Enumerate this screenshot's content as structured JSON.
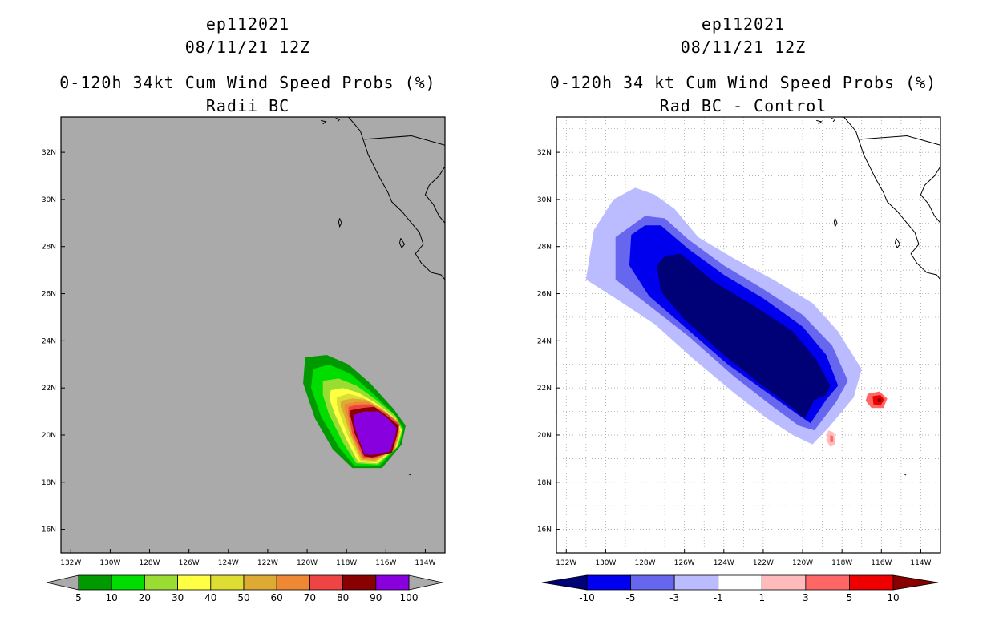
{
  "panels": [
    {
      "id": "left",
      "title_line1": "ep112021",
      "title_line2": "08/11/21 12Z",
      "title_line3": "0-120h 34kt Cum Wind Speed Probs (%)",
      "title_line4": "Radii BC",
      "background_color": "#aaaaaa",
      "colorbar_labels": [
        "5",
        "10",
        "20",
        "30",
        "40",
        "50",
        "60",
        "70",
        "80",
        "90",
        "100"
      ],
      "colorbar_colors": [
        "#aaaaaa",
        "#009900",
        "#00dd00",
        "#99dd33",
        "#ffff44",
        "#dddd33",
        "#ddaa33",
        "#ee8833",
        "#ee4444",
        "#880000",
        "#8800dd",
        "#aaaaaa"
      ]
    },
    {
      "id": "right",
      "title_line1": "ep112021",
      "title_line2": "08/11/21 12Z",
      "title_line3": "0-120h 34 kt Cum Wind Speed Probs (%)",
      "title_line4": "Rad BC - Control",
      "background_color": "#ffffff",
      "colorbar_labels": [
        "-10",
        "-5",
        "-3",
        "-1",
        "1",
        "3",
        "5",
        "10"
      ],
      "colorbar_colors": [
        "#000077",
        "#0000ee",
        "#6666ee",
        "#bbbbff",
        "#ffffff",
        "#ffbbbb",
        "#ff6666",
        "#ee0000",
        "#880000"
      ]
    }
  ],
  "chart_data": [
    {
      "type": "heatmap",
      "title": "0-120h 34kt Cum Wind Speed Probs (%)",
      "subtitle": "Radii BC",
      "xlabel": "",
      "ylabel": "",
      "x_ticks": [
        "132W",
        "130W",
        "128W",
        "126W",
        "124W",
        "122W",
        "120W",
        "118W",
        "116W",
        "114W"
      ],
      "y_ticks": [
        "16N",
        "18N",
        "20N",
        "22N",
        "24N",
        "26N",
        "28N",
        "30N",
        "32N"
      ],
      "xlim": [
        -132.5,
        -113.0
      ],
      "ylim": [
        15.0,
        33.5
      ],
      "levels": [
        5,
        10,
        20,
        30,
        40,
        50,
        60,
        70,
        80,
        90,
        100
      ],
      "grid": false,
      "max_probability_center": {
        "lon": -116.8,
        "lat": 20.2
      }
    },
    {
      "type": "heatmap",
      "title": "0-120h 34 kt Cum Wind Speed Probs (%)",
      "subtitle": "Rad BC - Control",
      "xlabel": "",
      "ylabel": "",
      "x_ticks": [
        "132W",
        "130W",
        "128W",
        "126W",
        "124W",
        "122W",
        "120W",
        "118W",
        "116W",
        "114W"
      ],
      "y_ticks": [
        "16N",
        "18N",
        "20N",
        "22N",
        "24N",
        "26N",
        "28N",
        "30N",
        "32N"
      ],
      "xlim": [
        -132.5,
        -113.0
      ],
      "ylim": [
        15.0,
        33.5
      ],
      "levels": [
        -10,
        -5,
        -3,
        -1,
        1,
        3,
        5,
        10
      ],
      "grid": true,
      "min_difference_band": {
        "from_lon": -127,
        "from_lat": 27,
        "to_lon": -119,
        "to_lat": 21
      },
      "max_difference_center": {
        "lon": -116.0,
        "lat": 21.5
      }
    }
  ]
}
